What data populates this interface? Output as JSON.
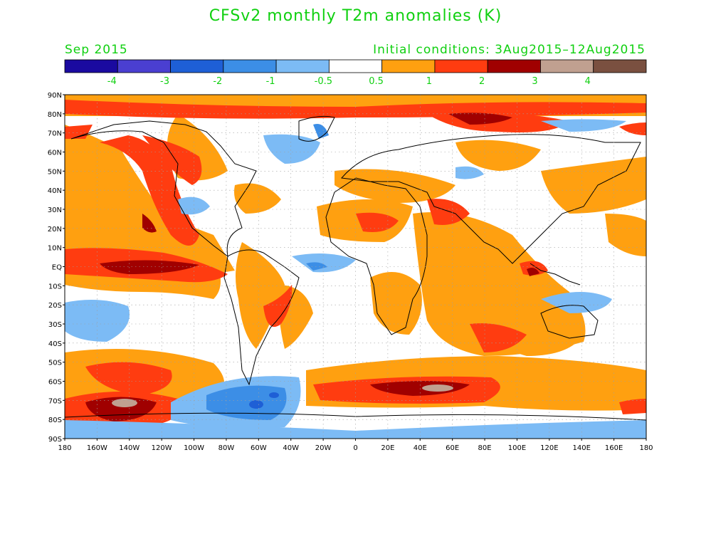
{
  "title": "CFSv2 monthly T2m anomalies (K)",
  "valid_month": "Sep 2015",
  "initial_conditions": "Initial conditions: 3Aug2015–12Aug2015",
  "colorbar": {
    "colors": [
      "#1a0aa0",
      "#4a3fd1",
      "#1e5fd6",
      "#3c8ee6",
      "#7cbbf5",
      "#ffffff",
      "#ffa010",
      "#ff3c10",
      "#a00000",
      "#c0a090",
      "#7a5040"
    ],
    "labels": [
      "-4",
      "-3",
      "-2",
      "-1",
      "-0.5",
      "0.5",
      "1",
      "2",
      "3",
      "4"
    ],
    "label_color": "#10d010"
  },
  "lat_labels": [
    "90N",
    "80N",
    "70N",
    "60N",
    "50N",
    "40N",
    "30N",
    "20N",
    "10N",
    "EQ",
    "10S",
    "20S",
    "30S",
    "40S",
    "50S",
    "60S",
    "70S",
    "80S",
    "90S"
  ],
  "lon_labels": [
    "180",
    "160W",
    "140W",
    "120W",
    "100W",
    "80W",
    "60W",
    "40W",
    "20W",
    "0",
    "20E",
    "40E",
    "60E",
    "80E",
    "100E",
    "120E",
    "140E",
    "160E",
    "180"
  ]
}
